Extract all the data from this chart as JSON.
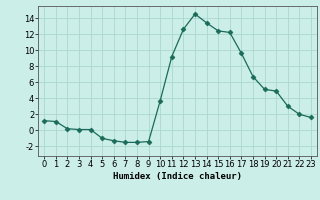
{
  "x": [
    0,
    1,
    2,
    3,
    4,
    5,
    6,
    7,
    8,
    9,
    10,
    11,
    12,
    13,
    14,
    15,
    16,
    17,
    18,
    19,
    20,
    21,
    22,
    23
  ],
  "y": [
    1.2,
    1.1,
    0.2,
    0.1,
    0.1,
    -1.0,
    -1.3,
    -1.5,
    -1.5,
    -1.4,
    3.7,
    9.2,
    12.6,
    14.5,
    13.4,
    12.4,
    12.2,
    9.6,
    6.7,
    5.1,
    4.9,
    3.0,
    2.0,
    1.6
  ],
  "line_color": "#1a6b5a",
  "marker": "D",
  "marker_size": 2.5,
  "bg_color": "#cceee8",
  "grid_color": "#aad8d0",
  "xlabel": "Humidex (Indice chaleur)",
  "xlim": [
    -0.5,
    23.5
  ],
  "ylim": [
    -3.2,
    15.5
  ],
  "yticks": [
    -2,
    0,
    2,
    4,
    6,
    8,
    10,
    12,
    14
  ],
  "xticks": [
    0,
    1,
    2,
    3,
    4,
    5,
    6,
    7,
    8,
    9,
    10,
    11,
    12,
    13,
    14,
    15,
    16,
    17,
    18,
    19,
    20,
    21,
    22,
    23
  ],
  "label_fontsize": 6.5,
  "tick_fontsize": 6.0
}
